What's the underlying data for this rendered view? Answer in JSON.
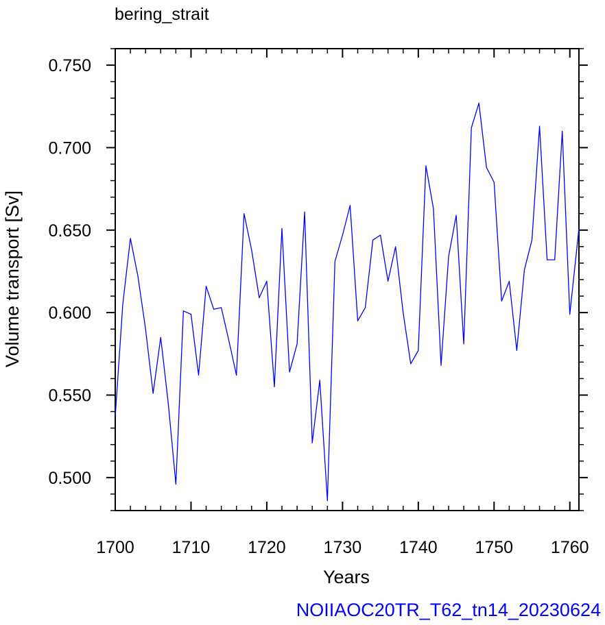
{
  "chart_data": {
    "type": "line",
    "title": "bering_strait",
    "xlabel": "Years",
    "ylabel": "Volume transport [Sv]",
    "footer": "NOIIAOC20TR_T62_tn14_20230624",
    "xlim": [
      1700,
      1761.2
    ],
    "ylim": [
      0.48,
      0.76
    ],
    "xticks": [
      1700,
      1710,
      1720,
      1730,
      1740,
      1750,
      1760
    ],
    "xtick_labels": [
      "1700",
      "1710",
      "1720",
      "1730",
      "1740",
      "1750",
      "1760"
    ],
    "yticks": [
      0.5,
      0.55,
      0.6,
      0.65,
      0.7,
      0.75
    ],
    "ytick_labels": [
      "0.500",
      "0.550",
      "0.600",
      "0.650",
      "0.700",
      "0.750"
    ],
    "series": [
      {
        "color": "#0000ff",
        "x": [
          1700,
          1701,
          1702,
          1703,
          1704,
          1705,
          1706,
          1707,
          1708,
          1709,
          1710,
          1711,
          1712,
          1713,
          1714,
          1715,
          1716,
          1717,
          1718,
          1719,
          1720,
          1721,
          1722,
          1723,
          1724,
          1725,
          1726,
          1727,
          1728,
          1729,
          1730,
          1731,
          1732,
          1733,
          1734,
          1735,
          1736,
          1737,
          1738,
          1739,
          1740,
          1741,
          1742,
          1743,
          1744,
          1745,
          1746,
          1747,
          1748,
          1749,
          1750,
          1751,
          1752,
          1753,
          1754,
          1755,
          1756,
          1757,
          1758,
          1759,
          1760,
          1761.2
        ],
        "y": [
          0.537,
          0.605,
          0.645,
          0.622,
          0.59,
          0.551,
          0.585,
          0.545,
          0.496,
          0.601,
          0.599,
          0.562,
          0.616,
          0.602,
          0.603,
          0.583,
          0.562,
          0.66,
          0.638,
          0.609,
          0.619,
          0.555,
          0.651,
          0.564,
          0.581,
          0.661,
          0.521,
          0.559,
          0.486,
          0.631,
          0.647,
          0.665,
          0.595,
          0.603,
          0.644,
          0.647,
          0.619,
          0.64,
          0.6,
          0.569,
          0.577,
          0.689,
          0.663,
          0.568,
          0.634,
          0.659,
          0.581,
          0.712,
          0.727,
          0.688,
          0.679,
          0.607,
          0.619,
          0.577,
          0.626,
          0.644,
          0.713,
          0.632,
          0.632,
          0.71,
          0.599,
          0.651
        ]
      }
    ]
  },
  "colors": {
    "line": "#0000ff",
    "footer": "#0000ff",
    "axis": "#000000"
  }
}
